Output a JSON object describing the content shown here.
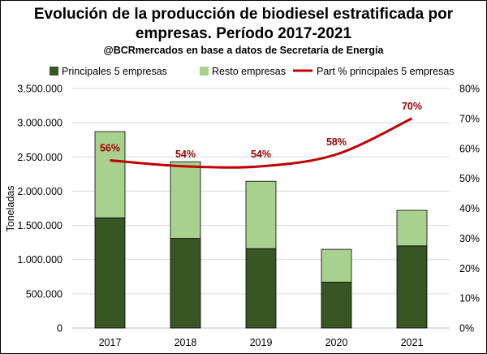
{
  "chart_data": {
    "type": "bar",
    "title": [
      "Evolución de la producción de biodiesel estratificada por",
      "empresas. Período 2017-2021"
    ],
    "subtitle": "@BCRmercados en base a datos de Secretaría de Energía",
    "categories": [
      "2017",
      "2018",
      "2019",
      "2020",
      "2021"
    ],
    "series": [
      {
        "name": "Principales 5 empresas",
        "kind": "stacked-bar",
        "color": "#375623",
        "values": [
          1610000,
          1310000,
          1160000,
          670000,
          1200000
        ]
      },
      {
        "name": "Resto empresas",
        "kind": "stacked-bar",
        "color": "#a9d18e",
        "values": [
          1260000,
          1120000,
          985000,
          480000,
          520000
        ]
      },
      {
        "name": "Part % principales 5 empresas",
        "kind": "line",
        "axis": "right",
        "color": "#c00000",
        "values": [
          56,
          54,
          54,
          58,
          70
        ],
        "labels": [
          "56%",
          "54%",
          "54%",
          "58%",
          "70%"
        ]
      }
    ],
    "ylabel": "Toneladas",
    "ylim": [
      0,
      3500000
    ],
    "yticks": [
      "0",
      "500.000",
      "1.000.000",
      "1.500.000",
      "2.000.000",
      "2.500.000",
      "3.000.000",
      "3.500.000"
    ],
    "y2lim": [
      0,
      80
    ],
    "y2ticks": [
      "0%",
      "10%",
      "20%",
      "30%",
      "40%",
      "50%",
      "60%",
      "70%",
      "80%"
    ],
    "legend": "top"
  }
}
